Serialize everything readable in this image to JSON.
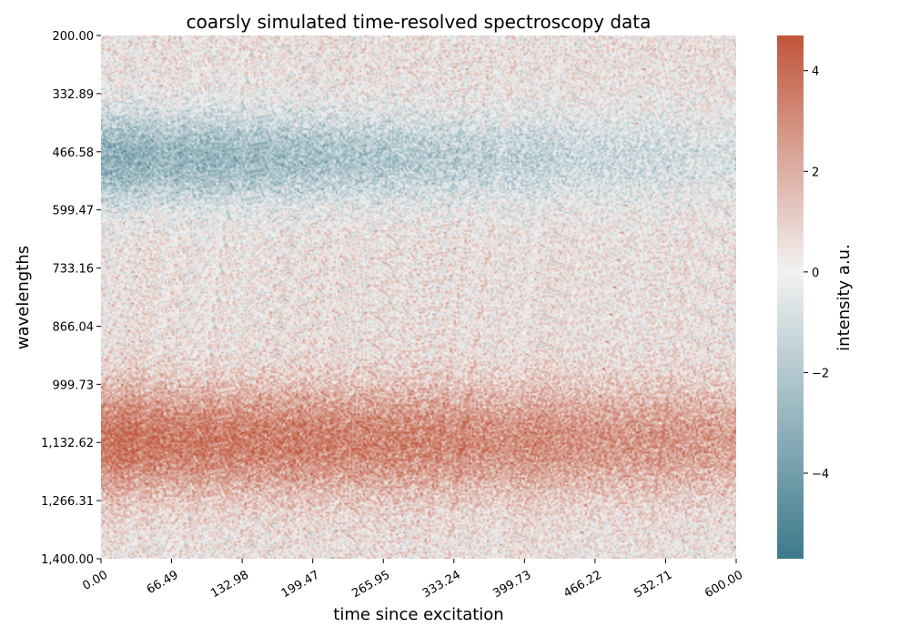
{
  "chart_data": {
    "type": "heatmap",
    "title": "coarsly simulated time-resolved spectroscopy data",
    "xlabel": "time since excitation",
    "ylabel": "wavelengths",
    "colorbar_label": "intensity a.u.",
    "xlim": [
      0,
      600
    ],
    "ylim": [
      1400,
      200
    ],
    "x_ticks": [
      "0.00",
      "66.49",
      "132.98",
      "199.47",
      "265.95",
      "333.24",
      "399.73",
      "466.22",
      "532.71",
      "600.00"
    ],
    "y_ticks": [
      "200.00",
      "332.89",
      "466.58",
      "599.47",
      "733.16",
      "866.04",
      "999.73",
      "1,132.62",
      "1,266.31",
      "1,400.00"
    ],
    "colorbar_range": [
      -5.7,
      4.7
    ],
    "colorbar_ticks": [
      {
        "value": 4,
        "label": "4"
      },
      {
        "value": 2,
        "label": "2"
      },
      {
        "value": 0,
        "label": "0"
      },
      {
        "value": -2,
        "label": "−2"
      },
      {
        "value": -4,
        "label": "−4"
      }
    ],
    "colormap": {
      "low": "#3d7a8c",
      "mid": "#f2f2f2",
      "high": "#c0553a"
    },
    "features": [
      {
        "name": "negative band",
        "wavelength_center": 480,
        "amplitude_start": -3.5,
        "amplitude_end": -1.0
      },
      {
        "name": "positive band",
        "wavelength_center": 1130,
        "amplitude_start": 3.5,
        "amplitude_end": 2.2
      }
    ],
    "noise_std": 1.0,
    "grid": false,
    "x_tick_rotation_deg": 30
  }
}
